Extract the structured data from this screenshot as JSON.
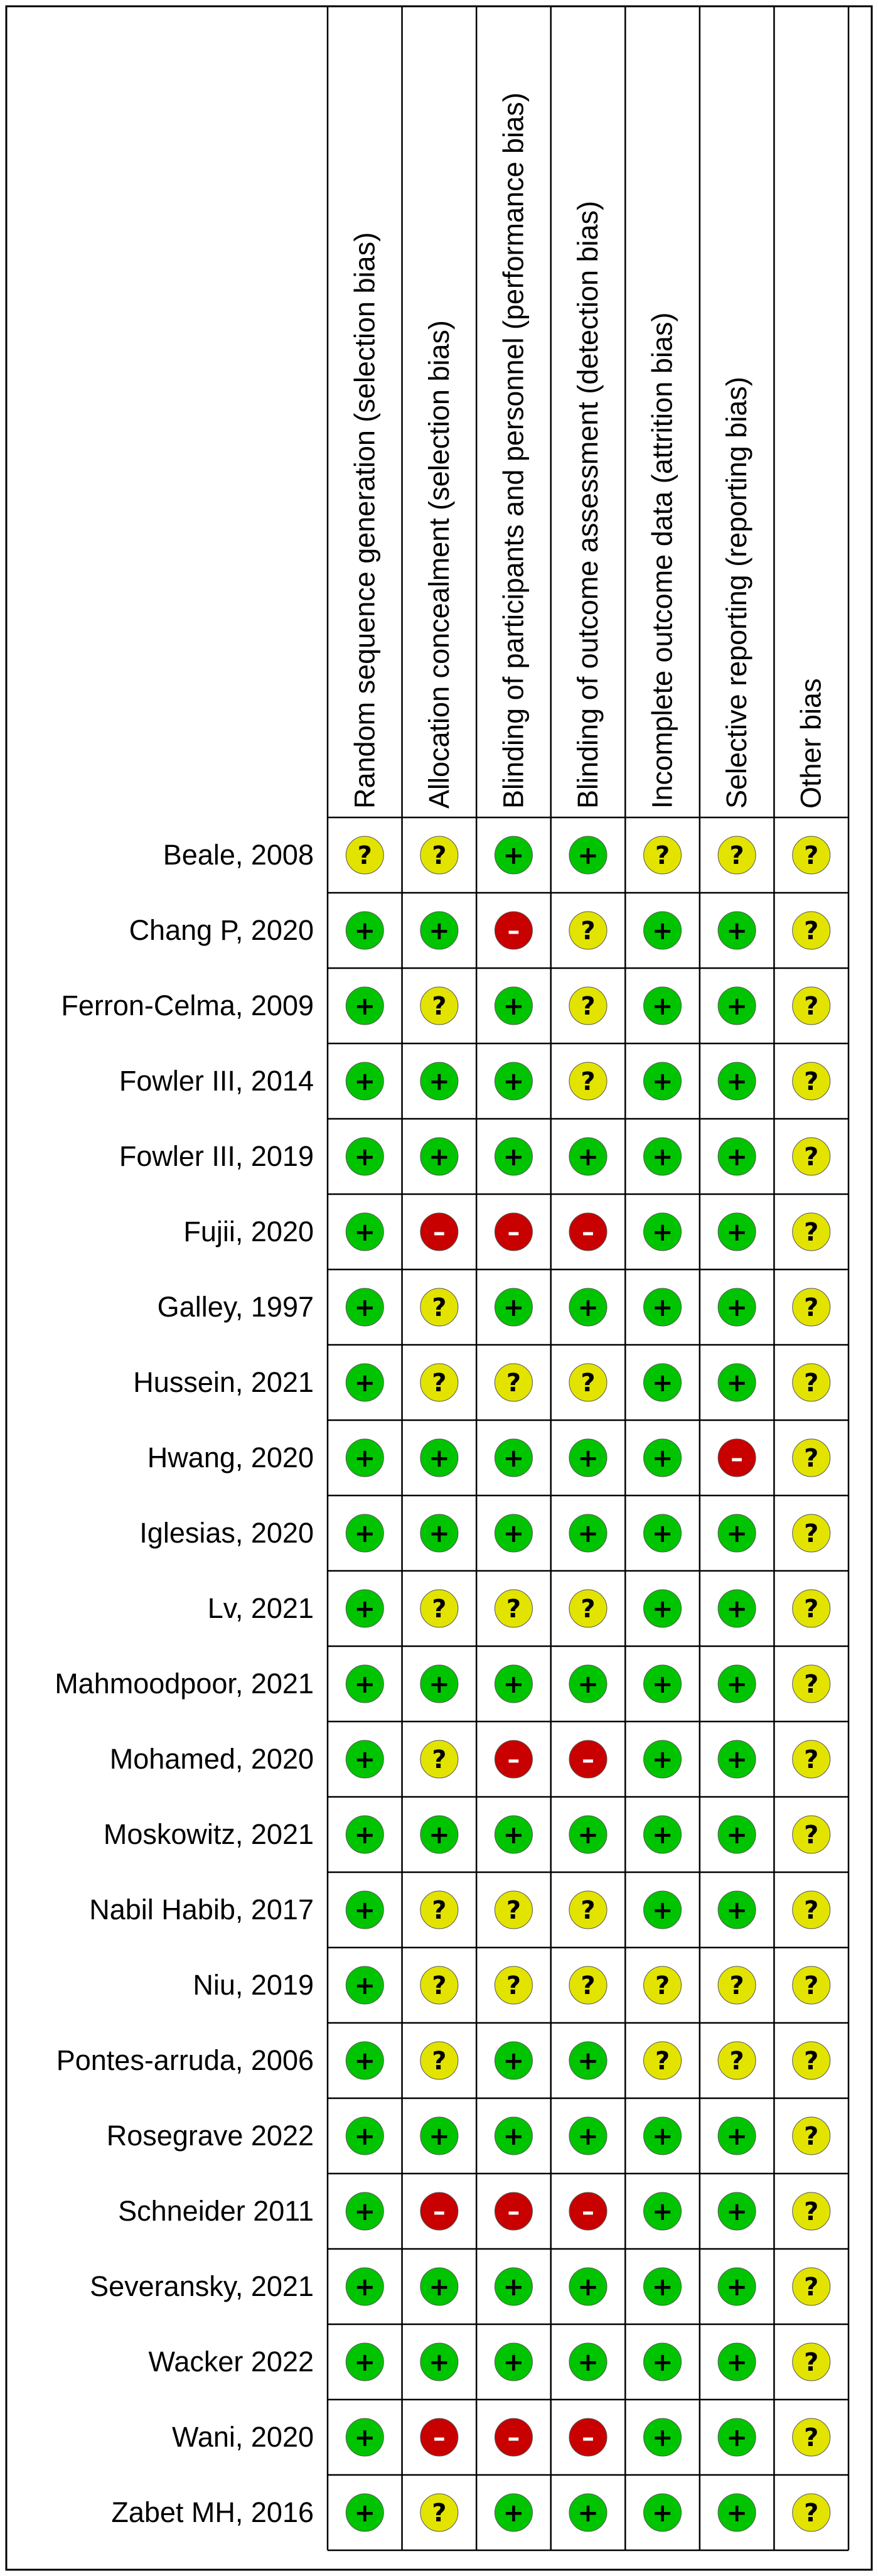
{
  "chart_data": {
    "type": "table",
    "domains": [
      "Random sequence generation (selection bias)",
      "Allocation concealment (selection bias)",
      "Blinding of participants and personnel (performance bias)",
      "Blinding of outcome assessment (detection bias)",
      "Incomplete outcome data (attrition bias)",
      "Selective reporting (reporting bias)",
      "Other bias"
    ],
    "judgement_symbols": {
      "low": "+",
      "unclear": "?",
      "high": "–"
    },
    "colors": {
      "low": "#00c400",
      "unclear": "#e3e300",
      "high": "#c80000"
    },
    "studies": [
      {
        "name": "Beale, 2008",
        "judgements": [
          "unclear",
          "unclear",
          "low",
          "low",
          "unclear",
          "unclear",
          "unclear"
        ]
      },
      {
        "name": "Chang P, 2020",
        "judgements": [
          "low",
          "low",
          "high",
          "unclear",
          "low",
          "low",
          "unclear"
        ]
      },
      {
        "name": "Ferron-Celma, 2009",
        "judgements": [
          "low",
          "unclear",
          "low",
          "unclear",
          "low",
          "low",
          "unclear"
        ]
      },
      {
        "name": "Fowler III, 2014",
        "judgements": [
          "low",
          "low",
          "low",
          "unclear",
          "low",
          "low",
          "unclear"
        ]
      },
      {
        "name": "Fowler III, 2019",
        "judgements": [
          "low",
          "low",
          "low",
          "low",
          "low",
          "low",
          "unclear"
        ]
      },
      {
        "name": "Fujii, 2020",
        "judgements": [
          "low",
          "high",
          "high",
          "high",
          "low",
          "low",
          "unclear"
        ]
      },
      {
        "name": "Galley, 1997",
        "judgements": [
          "low",
          "unclear",
          "low",
          "low",
          "low",
          "low",
          "unclear"
        ]
      },
      {
        "name": "Hussein, 2021",
        "judgements": [
          "low",
          "unclear",
          "unclear",
          "unclear",
          "low",
          "low",
          "unclear"
        ]
      },
      {
        "name": "Hwang, 2020",
        "judgements": [
          "low",
          "low",
          "low",
          "low",
          "low",
          "high",
          "unclear"
        ]
      },
      {
        "name": "Iglesias, 2020",
        "judgements": [
          "low",
          "low",
          "low",
          "low",
          "low",
          "low",
          "unclear"
        ]
      },
      {
        "name": "Lv, 2021",
        "judgements": [
          "low",
          "unclear",
          "unclear",
          "unclear",
          "low",
          "low",
          "unclear"
        ]
      },
      {
        "name": "Mahmoodpoor, 2021",
        "judgements": [
          "low",
          "low",
          "low",
          "low",
          "low",
          "low",
          "unclear"
        ]
      },
      {
        "name": "Mohamed, 2020",
        "judgements": [
          "low",
          "unclear",
          "high",
          "high",
          "low",
          "low",
          "unclear"
        ]
      },
      {
        "name": "Moskowitz, 2021",
        "judgements": [
          "low",
          "low",
          "low",
          "low",
          "low",
          "low",
          "unclear"
        ]
      },
      {
        "name": "Nabil Habib, 2017",
        "judgements": [
          "low",
          "unclear",
          "unclear",
          "unclear",
          "low",
          "low",
          "unclear"
        ]
      },
      {
        "name": "Niu, 2019",
        "judgements": [
          "low",
          "unclear",
          "unclear",
          "unclear",
          "unclear",
          "unclear",
          "unclear"
        ]
      },
      {
        "name": "Pontes-arruda, 2006",
        "judgements": [
          "low",
          "unclear",
          "low",
          "low",
          "unclear",
          "unclear",
          "unclear"
        ]
      },
      {
        "name": "Rosegrave 2022",
        "judgements": [
          "low",
          "low",
          "low",
          "low",
          "low",
          "low",
          "unclear"
        ]
      },
      {
        "name": "Schneider 2011",
        "judgements": [
          "low",
          "high",
          "high",
          "high",
          "low",
          "low",
          "unclear"
        ]
      },
      {
        "name": "Severansky, 2021",
        "judgements": [
          "low",
          "low",
          "low",
          "low",
          "low",
          "low",
          "unclear"
        ]
      },
      {
        "name": "Wacker 2022",
        "judgements": [
          "low",
          "low",
          "low",
          "low",
          "low",
          "low",
          "unclear"
        ]
      },
      {
        "name": "Wani, 2020",
        "judgements": [
          "low",
          "high",
          "high",
          "high",
          "low",
          "low",
          "unclear"
        ]
      },
      {
        "name": "Zabet MH, 2016",
        "judgements": [
          "low",
          "unclear",
          "low",
          "low",
          "low",
          "low",
          "unclear"
        ]
      }
    ]
  }
}
